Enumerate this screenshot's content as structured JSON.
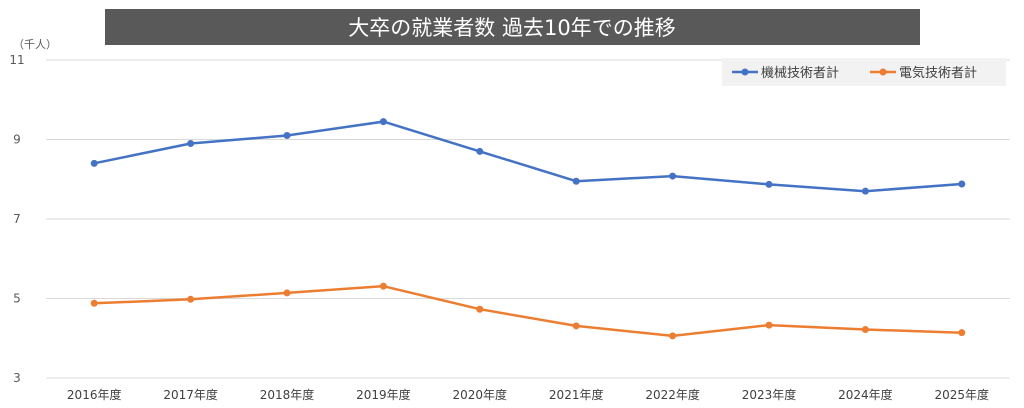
{
  "chart_data": {
    "type": "line",
    "title": "大卒の就業者数 過去10年での推移",
    "unit_label": "（千人）",
    "categories": [
      "2016年度",
      "2017年度",
      "2018年度",
      "2019年度",
      "2020年度",
      "2021年度",
      "2022年度",
      "2023年度",
      "2024年度",
      "2025年度"
    ],
    "ylim": [
      3,
      11
    ],
    "yticks": [
      3,
      5,
      7,
      9,
      11
    ],
    "grid": true,
    "legend_position": "top-right",
    "series": [
      {
        "name": "機械技術者計",
        "color": "#4472C4",
        "values": [
          8.4,
          8.9,
          9.1,
          9.45,
          8.7,
          7.95,
          8.08,
          7.87,
          7.7,
          7.88
        ]
      },
      {
        "name": "電気技術者計",
        "color": "#ED7D31",
        "values": [
          4.88,
          4.98,
          5.14,
          5.31,
          4.73,
          4.31,
          4.06,
          4.33,
          4.22,
          4.14
        ]
      }
    ]
  }
}
